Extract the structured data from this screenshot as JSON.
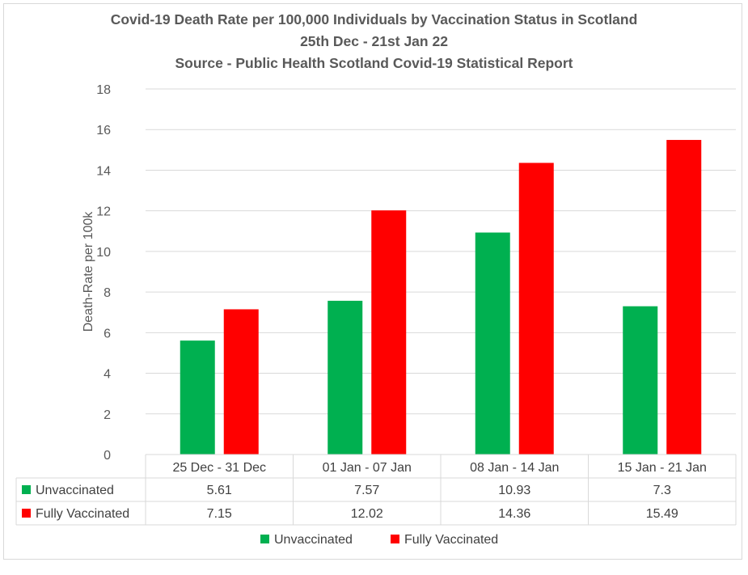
{
  "chart_data": {
    "type": "bar",
    "title": [
      "Covid-19 Death Rate per 100,000 Individuals by Vaccination Status in Scotland",
      "25th Dec - 21st Jan 22",
      "Source - Public Health Scotland Covid-19 Statistical Report"
    ],
    "xlabel": "",
    "ylabel": "Death-Rate per 100k",
    "ylim": [
      0,
      18
    ],
    "yticks": [
      0,
      2,
      4,
      6,
      8,
      10,
      12,
      14,
      16,
      18
    ],
    "grid": true,
    "legend_position": "bottom",
    "categories": [
      "25 Dec - 31 Dec",
      "01 Jan - 07 Jan",
      "08 Jan - 14 Jan",
      "15 Jan - 21 Jan"
    ],
    "series": [
      {
        "name": "Unvaccinated",
        "color": "#00b050",
        "values": [
          5.61,
          7.57,
          10.93,
          7.3
        ],
        "labels": [
          "5.61",
          "7.57",
          "10.93",
          "7.3"
        ]
      },
      {
        "name": "Fully Vaccinated",
        "color": "#ff0000",
        "values": [
          7.15,
          12.02,
          14.36,
          15.49
        ],
        "labels": [
          "7.15",
          "12.02",
          "14.36",
          "15.49"
        ]
      }
    ]
  }
}
